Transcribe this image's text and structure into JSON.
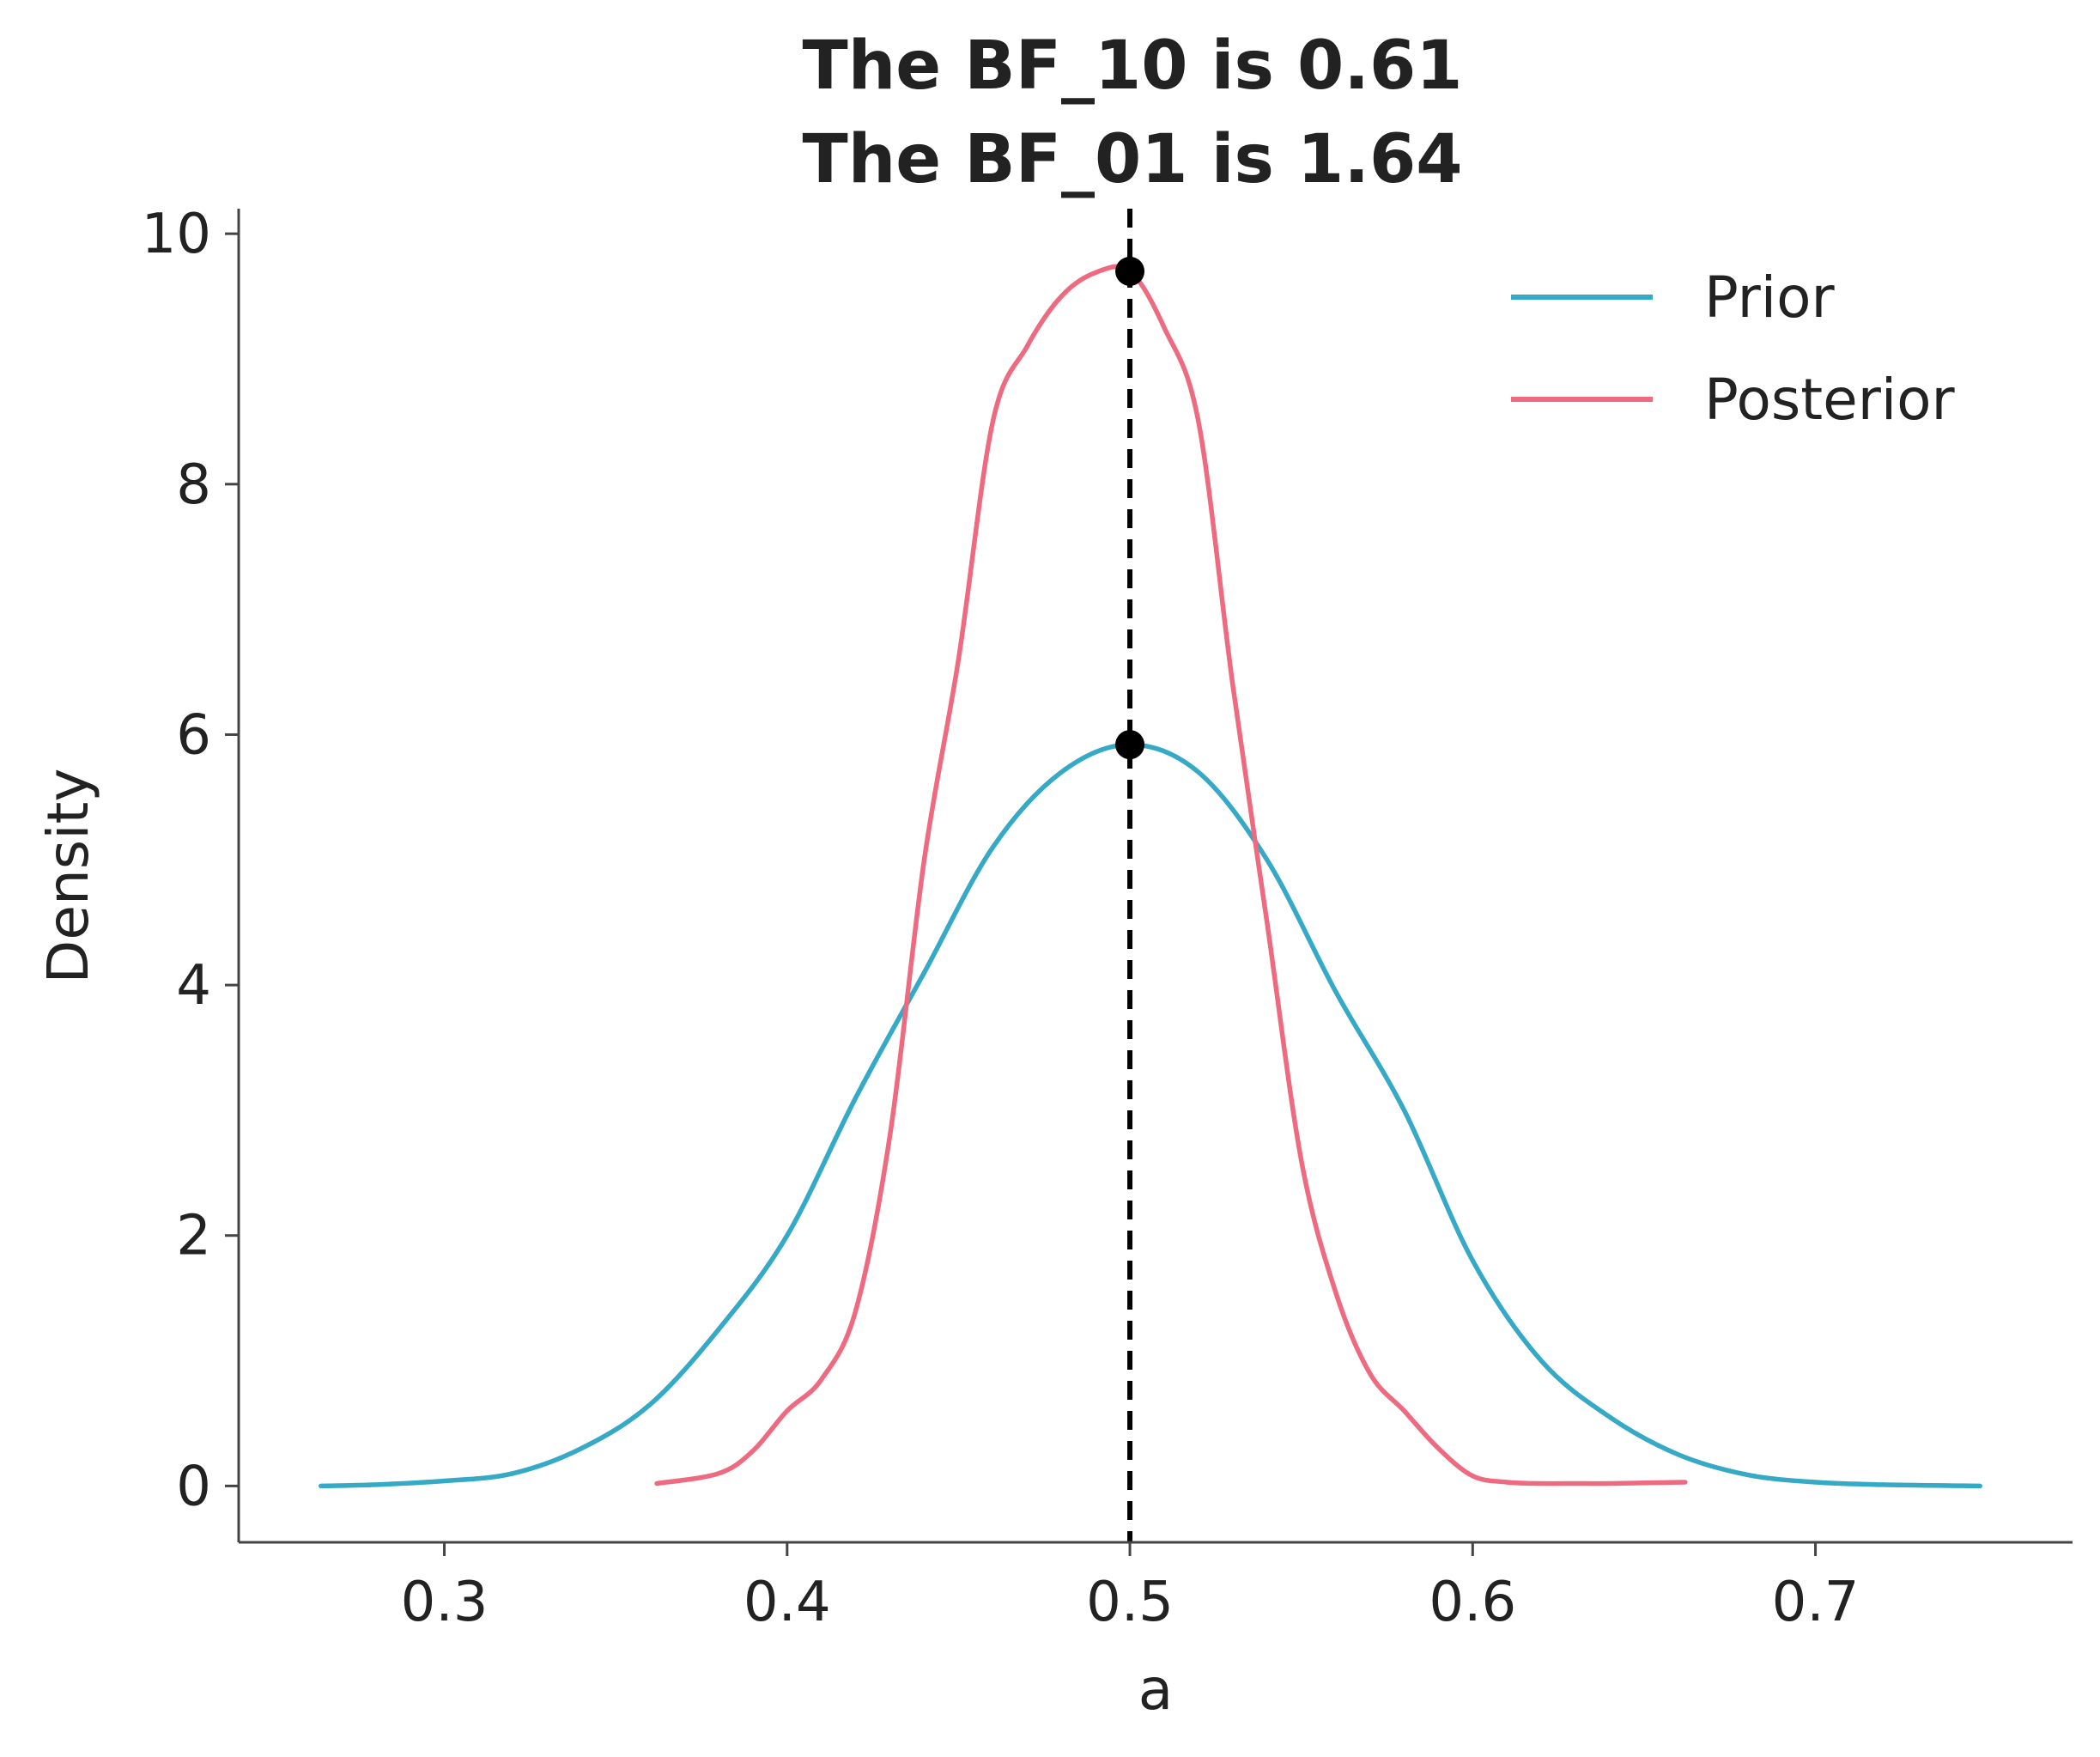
{
  "chart_data": {
    "type": "line",
    "title_lines": [
      "The BF_10 is 0.61",
      "The BF_01 is 1.64"
    ],
    "xlabel": "a",
    "ylabel": "Density",
    "xlim": [
      0.24,
      0.775
    ],
    "ylim": [
      -0.45,
      10.2
    ],
    "xticks": [
      0.3,
      0.4,
      0.5,
      0.6,
      0.7
    ],
    "xtick_labels": [
      "0.3",
      "0.4",
      "0.5",
      "0.6",
      "0.7"
    ],
    "yticks": [
      0,
      2,
      4,
      6,
      8,
      10
    ],
    "ytick_labels": [
      "0",
      "2",
      "4",
      "6",
      "8",
      "10"
    ],
    "grid": false,
    "legend_position": "top-right",
    "reference_line": {
      "x": 0.5,
      "style": "dashed",
      "color": "#000000"
    },
    "series": [
      {
        "name": "Prior",
        "color": "#35a9c5",
        "x": [
          0.264,
          0.28,
          0.3,
          0.32,
          0.34,
          0.36,
          0.38,
          0.4,
          0.42,
          0.44,
          0.46,
          0.48,
          0.5,
          0.52,
          0.54,
          0.56,
          0.58,
          0.6,
          0.62,
          0.64,
          0.66,
          0.68,
          0.7,
          0.72,
          0.748
        ],
        "y": [
          0.0,
          0.01,
          0.04,
          0.1,
          0.3,
          0.65,
          1.25,
          2.0,
          3.1,
          4.1,
          5.1,
          5.7,
          5.92,
          5.7,
          5.0,
          3.95,
          3.0,
          1.8,
          1.0,
          0.55,
          0.25,
          0.09,
          0.03,
          0.01,
          0.0
        ]
      },
      {
        "name": "Posterior",
        "color": "#ee6a80",
        "x": [
          0.362,
          0.38,
          0.39,
          0.4,
          0.41,
          0.42,
          0.43,
          0.44,
          0.45,
          0.46,
          0.47,
          0.48,
          0.49,
          0.5,
          0.51,
          0.52,
          0.53,
          0.54,
          0.55,
          0.56,
          0.57,
          0.58,
          0.59,
          0.6,
          0.61,
          0.62,
          0.63,
          0.64,
          0.662
        ],
        "y": [
          0.02,
          0.1,
          0.28,
          0.6,
          0.85,
          1.4,
          2.8,
          5.0,
          6.6,
          8.5,
          9.1,
          9.5,
          9.69,
          9.7,
          9.25,
          8.5,
          6.4,
          4.5,
          2.6,
          1.55,
          0.9,
          0.6,
          0.3,
          0.08,
          0.03,
          0.02,
          0.02,
          0.02,
          0.03
        ]
      }
    ],
    "markers": [
      {
        "series": "Prior",
        "x": 0.5,
        "y": 5.92
      },
      {
        "series": "Posterior",
        "x": 0.5,
        "y": 9.7
      }
    ]
  }
}
